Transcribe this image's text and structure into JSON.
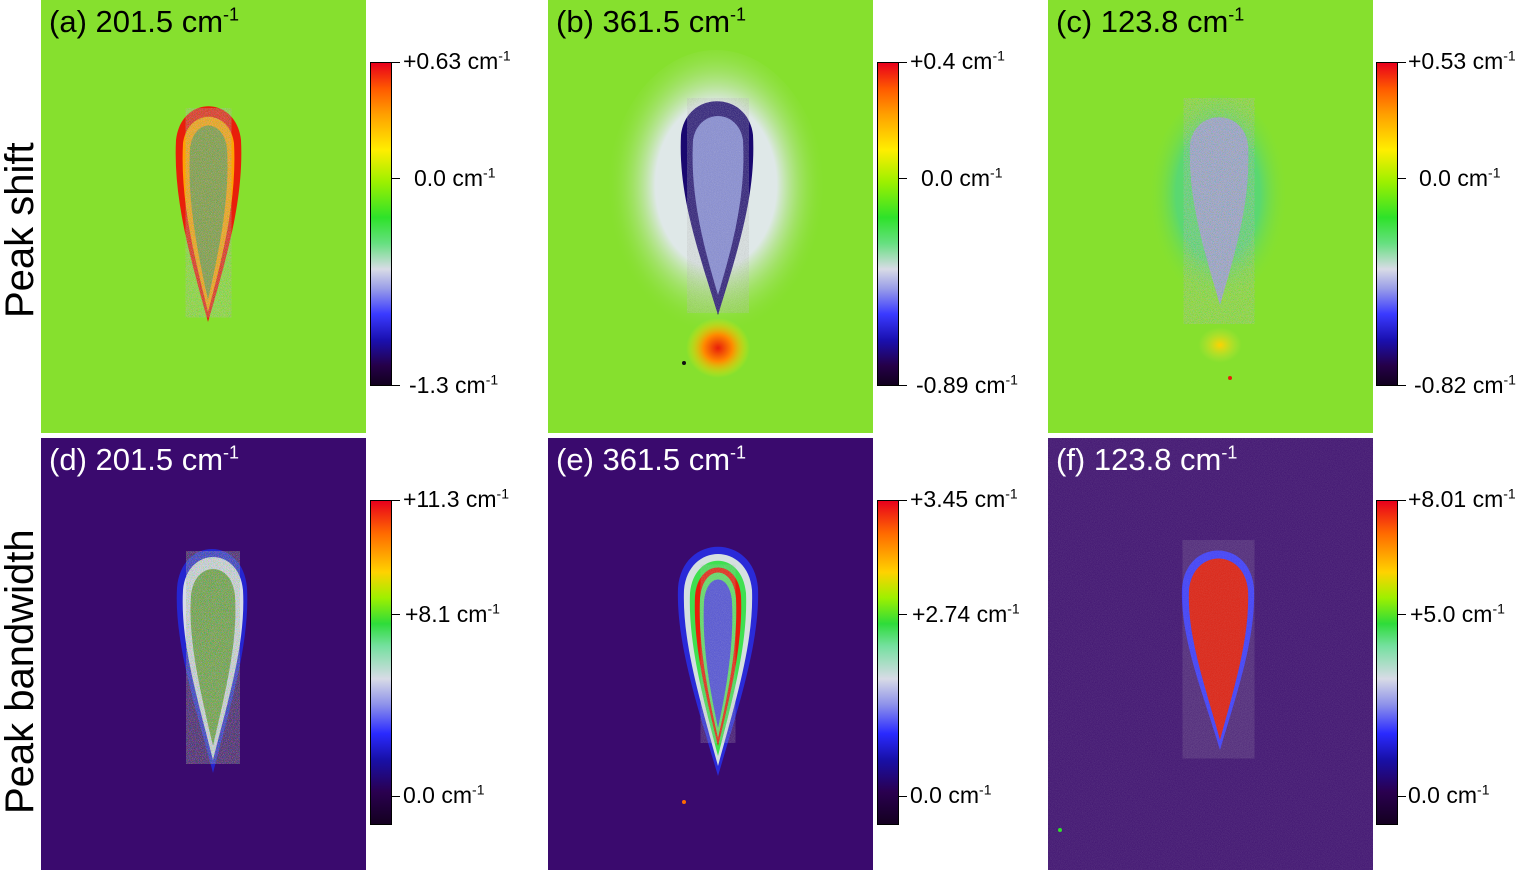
{
  "row_labels": {
    "top": "Peak shift",
    "bottom": "Peak bandwidth"
  },
  "panels": [
    {
      "title": "(a) 201.5 cm",
      "exp": "-1",
      "cb": {
        "max": "+0.63 cm",
        "mid": "0.0 cm",
        "min": "-1.3 cm"
      }
    },
    {
      "title": "(b) 361.5 cm",
      "exp": "-1",
      "cb": {
        "max": "+0.4 cm",
        "mid": "0.0 cm",
        "min": "-0.89 cm"
      }
    },
    {
      "title": "(c) 123.8 cm",
      "exp": "-1",
      "cb": {
        "max": "+0.53 cm",
        "mid": "0.0 cm",
        "min": "-0.82 cm"
      }
    },
    {
      "title": "(d) 201.5 cm",
      "exp": "-1",
      "cb": {
        "max": "+11.3 cm",
        "mid": "+8.1 cm",
        "min": "0.0 cm"
      }
    },
    {
      "title": "(e) 361.5 cm",
      "exp": "-1",
      "cb": {
        "max": "+3.45 cm",
        "mid": "+2.74 cm",
        "min": "0.0 cm"
      }
    },
    {
      "title": "(f) 123.8 cm",
      "exp": "-1",
      "cb": {
        "max": "+8.01 cm",
        "mid": "+5.0 cm",
        "min": "0.0 cm"
      }
    }
  ],
  "colors": {
    "shift_background": "#86e02e",
    "bandwidth_background": "#3a0a6e",
    "title_dark": "#000000",
    "title_light": "#ffffff"
  }
}
